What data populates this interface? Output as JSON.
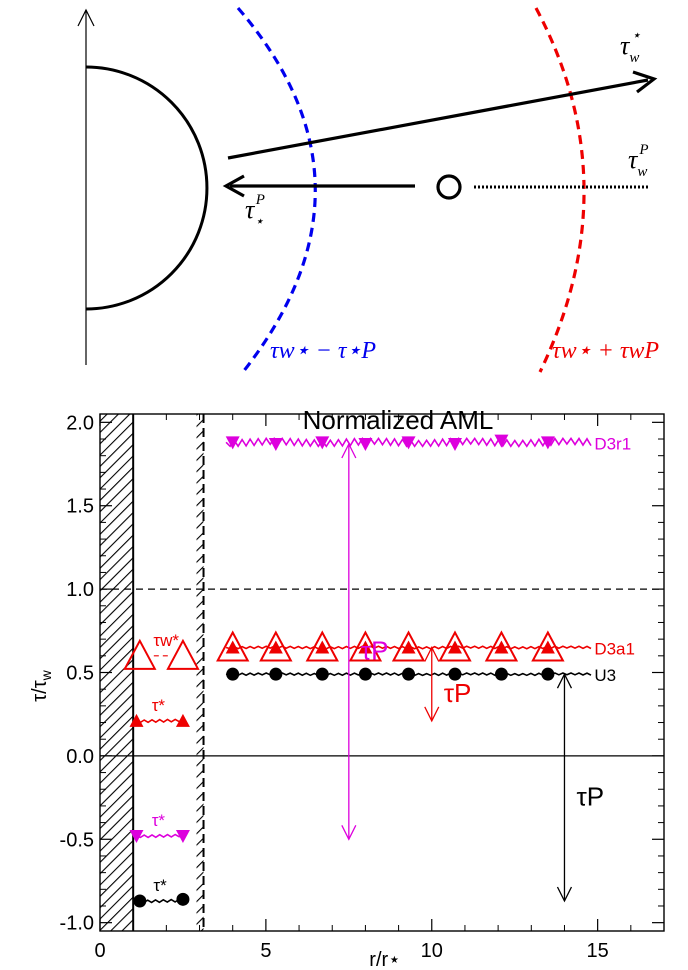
{
  "schematic": {
    "labels": {
      "tau_w_star": {
        "base": "τ",
        "sub": "w",
        "sup": "⋆"
      },
      "tau_w_P": {
        "base": "τ",
        "sub": "w",
        "sup": "P"
      },
      "tau_star_P": {
        "base": "τ",
        "sub": "⋆",
        "sup": "P"
      },
      "blue_curve": "τw⋆ − τ⋆P",
      "red_curve": "τw⋆ + τwP"
    },
    "colors": {
      "blue": "#0000ee",
      "red": "#ee0000",
      "black": "#000000"
    }
  },
  "chart_data": {
    "type": "scatter",
    "title": "Normalized AML",
    "xlabel": "r/r⋆",
    "ylabel": "τ/τw",
    "xlim": [
      0,
      17
    ],
    "ylim": [
      -1.05,
      2.05
    ],
    "xticks": [
      0,
      5,
      10,
      15
    ],
    "yticks": [
      -1.0,
      -0.5,
      0.0,
      0.5,
      1.0,
      1.5,
      2.0
    ],
    "ytick_labels": [
      "-1.0",
      "-0.5",
      "0.0",
      "0.5",
      "1.0",
      "1.5",
      "2.0"
    ],
    "reference_lines": [
      {
        "y": 1.0,
        "style": "dashed"
      },
      {
        "y": 0.0,
        "style": "solid"
      }
    ],
    "hatched_regions": [
      {
        "x0": 0,
        "x1": 1
      },
      {
        "x": 3.0,
        "style": "dashed-hatched-line"
      }
    ],
    "series": [
      {
        "name": "D3r1",
        "color": "#dd00dd",
        "marker": "triangle-down",
        "x": [
          4.0,
          5.3,
          6.7,
          8.0,
          9.3,
          10.7,
          12.1,
          13.5
        ],
        "y": [
          1.88,
          1.87,
          1.88,
          1.87,
          1.88,
          1.87,
          1.89,
          1.88
        ]
      },
      {
        "name": "D3a1",
        "color": "#ee0000",
        "marker": "triangle",
        "x": [
          4.0,
          5.3,
          6.7,
          8.0,
          9.3,
          10.7,
          12.1,
          13.5
        ],
        "y": [
          0.65,
          0.65,
          0.65,
          0.65,
          0.65,
          0.65,
          0.65,
          0.65
        ]
      },
      {
        "name": "U3",
        "color": "#000000",
        "marker": "circle",
        "x": [
          4.0,
          5.3,
          6.7,
          8.0,
          9.3,
          10.7,
          12.1,
          13.5
        ],
        "y": [
          0.49,
          0.49,
          0.49,
          0.49,
          0.49,
          0.49,
          0.49,
          0.49
        ]
      }
    ],
    "inner_points": [
      {
        "label": "τw*",
        "color": "#ee0000",
        "marker": "triangle-open",
        "x": [
          1.2,
          2.5
        ],
        "y": [
          0.6,
          0.6
        ]
      },
      {
        "label": "τ*",
        "color": "#ee0000",
        "marker": "triangle",
        "x": [
          1.1,
          2.5
        ],
        "y": [
          0.21,
          0.21
        ]
      },
      {
        "label": "τ*",
        "color": "#dd00dd",
        "marker": "triangle-down",
        "x": [
          1.1,
          2.5
        ],
        "y": [
          -0.48,
          -0.48
        ]
      },
      {
        "label": "τ*",
        "color": "#000000",
        "marker": "circle",
        "x": [
          1.2,
          2.5
        ],
        "y": [
          -0.87,
          -0.86
        ]
      }
    ],
    "arrows": [
      {
        "label": "τP",
        "color": "#dd00dd",
        "x": 7.5,
        "y0": 1.87,
        "y1": -0.5
      },
      {
        "label": "τP",
        "color": "#ee0000",
        "x": 10.0,
        "y0": 0.65,
        "y1": 0.21
      },
      {
        "label": "τP",
        "color": "#000000",
        "x": 14.0,
        "y0": 0.49,
        "y1": -0.87
      }
    ]
  }
}
